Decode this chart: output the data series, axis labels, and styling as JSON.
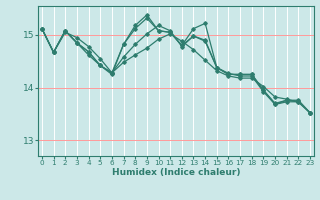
{
  "xlabel": "Humidex (Indice chaleur)",
  "background_color": "#cce8e8",
  "grid_color": "#ffffff",
  "red_line_color": "#ff9999",
  "line_color": "#2e7d6e",
  "x_ticks": [
    0,
    1,
    2,
    3,
    4,
    5,
    6,
    7,
    8,
    9,
    10,
    11,
    12,
    13,
    14,
    15,
    16,
    17,
    18,
    19,
    20,
    21,
    22,
    23
  ],
  "y_ticks": [
    13,
    14,
    15
  ],
  "ylim": [
    12.7,
    15.55
  ],
  "xlim": [
    -0.3,
    23.3
  ],
  "line1_y": [
    15.12,
    14.67,
    15.05,
    14.95,
    14.78,
    14.55,
    14.28,
    14.48,
    14.62,
    14.75,
    14.92,
    15.02,
    14.88,
    14.72,
    14.52,
    14.32,
    14.22,
    14.18,
    14.18,
    14.02,
    13.82,
    13.78,
    13.72,
    13.52
  ],
  "line2_y": [
    15.12,
    14.67,
    15.08,
    14.85,
    14.62,
    14.42,
    14.28,
    14.58,
    14.82,
    15.02,
    15.18,
    15.08,
    14.78,
    14.98,
    14.88,
    14.38,
    14.27,
    14.22,
    14.22,
    13.92,
    13.68,
    13.73,
    13.73,
    13.52
  ],
  "line3_y": [
    15.12,
    14.67,
    15.08,
    14.85,
    14.68,
    14.42,
    14.28,
    14.82,
    15.12,
    15.32,
    15.08,
    15.05,
    14.8,
    14.98,
    14.9,
    14.38,
    14.25,
    14.25,
    14.25,
    13.95,
    13.7,
    13.76,
    13.76,
    13.52
  ],
  "line4_y": [
    15.12,
    14.67,
    15.08,
    14.85,
    14.68,
    14.42,
    14.25,
    14.82,
    15.18,
    15.38,
    15.08,
    15.05,
    14.8,
    15.12,
    15.22,
    14.38,
    14.25,
    14.25,
    14.25,
    13.95,
    13.68,
    13.76,
    13.74,
    13.52
  ]
}
